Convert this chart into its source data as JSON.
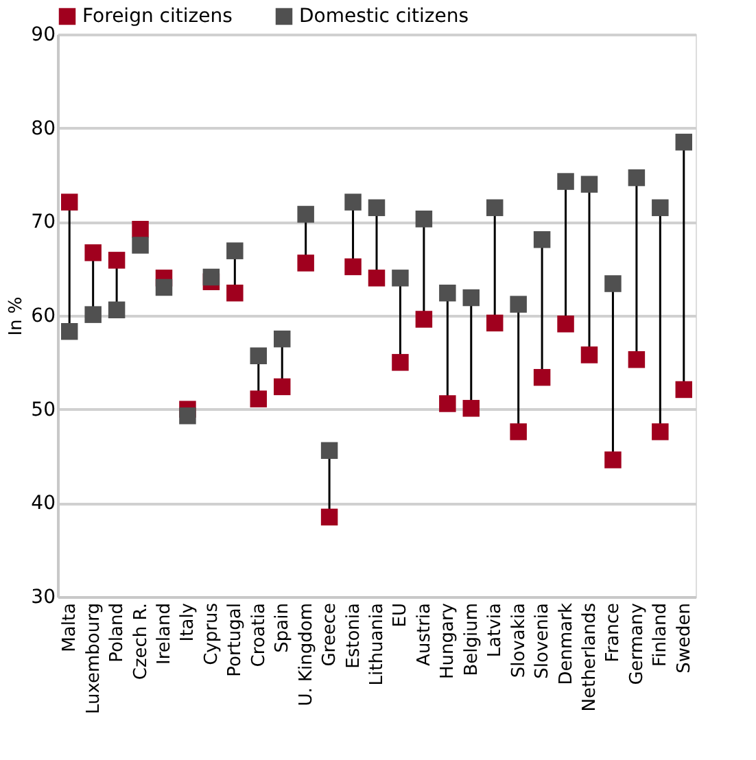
{
  "chart_data": {
    "type": "scatter",
    "ylabel": "In %",
    "marker": "square",
    "grid": "y",
    "legend": "top left",
    "categories": [
      "Malta",
      "Luxembourg",
      "Poland",
      "Czech R.",
      "Ireland",
      "Italy",
      "Cyprus",
      "Portugal",
      "Croatia",
      "Spain",
      "U. Kingdom",
      "Greece",
      "Estonia",
      "Lithuania",
      "EU",
      "Austria",
      "Hungary",
      "Belgium",
      "Latvia",
      "Slovakia",
      "Slovenia",
      "Denmark",
      "Netherlands",
      "France",
      "Germany",
      "Finland",
      "Sweden"
    ],
    "ylim": [
      30,
      90
    ],
    "yticks": [
      30,
      40,
      50,
      60,
      70,
      80,
      90
    ],
    "series": [
      {
        "name": "Foreign citizens",
        "color": "#a0001e",
        "values": [
          72.1,
          66.7,
          65.9,
          69.2,
          64.0,
          50.0,
          63.6,
          62.4,
          51.1,
          52.4,
          65.6,
          38.5,
          65.2,
          64.0,
          55.0,
          59.6,
          50.6,
          50.1,
          59.2,
          47.6,
          53.4,
          59.1,
          55.8,
          44.6,
          55.3,
          47.6,
          52.1
        ]
      },
      {
        "name": "Domestic citizens",
        "color": "#505050",
        "values": [
          58.3,
          60.1,
          60.6,
          67.5,
          63.0,
          49.3,
          64.1,
          66.9,
          55.7,
          57.5,
          70.8,
          45.6,
          72.1,
          71.5,
          64.0,
          70.3,
          62.4,
          61.9,
          71.5,
          61.2,
          68.1,
          74.3,
          74.0,
          63.4,
          74.7,
          71.5,
          78.5
        ]
      }
    ]
  }
}
